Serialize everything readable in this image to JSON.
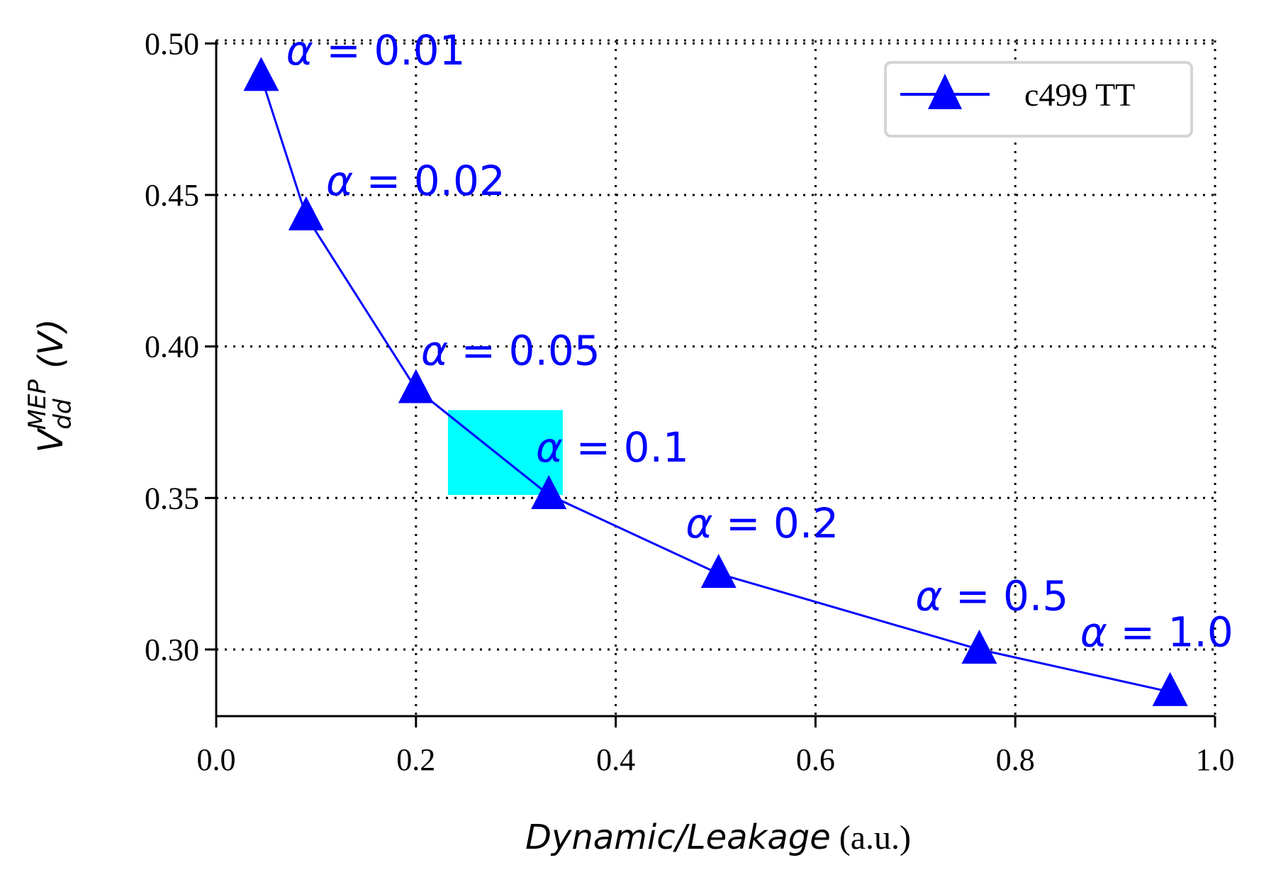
{
  "chart_data": {
    "type": "line",
    "xlabel": {
      "italic": "Dynamic/Leakage",
      "unit": " (a.u.)"
    },
    "ylabel": {
      "base": "V",
      "sub": "dd",
      "sup": "MEP",
      "unit": " (V)"
    },
    "xlim": [
      0.0,
      1.0
    ],
    "ylim": [
      0.278,
      0.501
    ],
    "xticks": [
      0.0,
      0.2,
      0.4,
      0.6,
      0.8,
      1.0
    ],
    "xtick_labels": [
      "0.0",
      "0.2",
      "0.4",
      "0.6",
      "0.8",
      "1.0"
    ],
    "yticks": [
      0.3,
      0.35,
      0.4,
      0.45,
      0.5
    ],
    "ytick_labels": [
      "0.30",
      "0.35",
      "0.40",
      "0.45",
      "0.50"
    ],
    "grid": true,
    "legend_position": "top-right",
    "series": [
      {
        "name": "c499 TT",
        "color": "#0000ff",
        "marker": "triangle-up",
        "x": [
          0.045,
          0.09,
          0.2,
          0.333,
          0.503,
          0.764,
          0.955
        ],
        "y": [
          0.489,
          0.443,
          0.386,
          0.351,
          0.325,
          0.3,
          0.286
        ]
      }
    ],
    "annotations": [
      {
        "prefix": "α",
        "text": " = 0.01",
        "x": 0.07,
        "y": 0.493
      },
      {
        "prefix": "α",
        "text": " = 0.02",
        "x": 0.11,
        "y": 0.45
      },
      {
        "prefix": "α",
        "text": " = 0.05",
        "x": 0.205,
        "y": 0.394
      },
      {
        "prefix": "α",
        "text": " = 0.1",
        "x": 0.32,
        "y": 0.362
      },
      {
        "prefix": "α",
        "text": " = 0.2",
        "x": 0.47,
        "y": 0.337
      },
      {
        "prefix": "α",
        "text": " = 0.5",
        "x": 0.7,
        "y": 0.313
      },
      {
        "prefix": "α",
        "text": " = 1.0",
        "x": 0.865,
        "y": 0.301
      }
    ],
    "highlight_rect": {
      "x0": 0.232,
      "x1": 0.347,
      "y0": 0.351,
      "y1": 0.379,
      "color": "#00ffff"
    }
  }
}
